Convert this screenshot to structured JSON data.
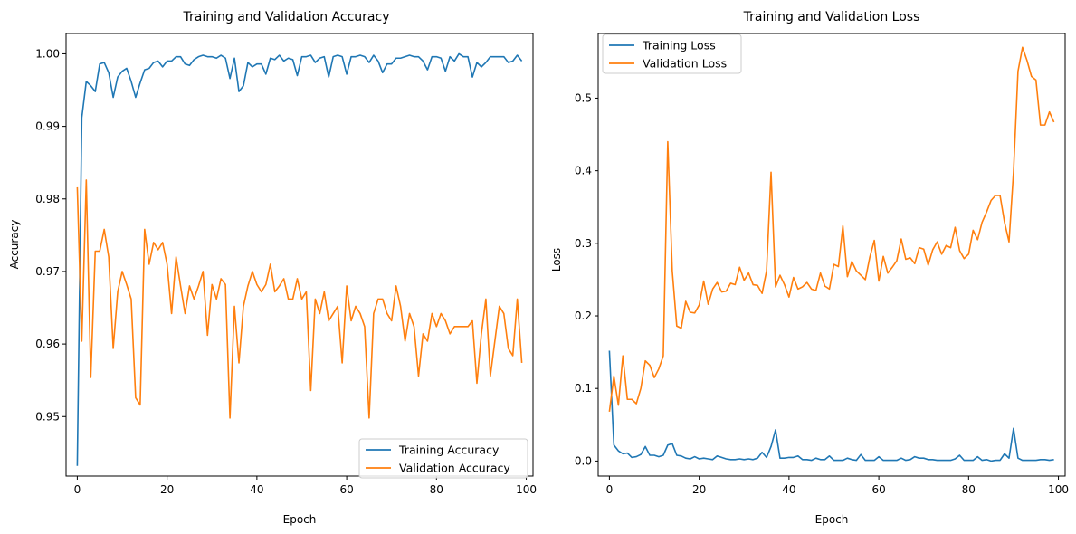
{
  "chart_data": [
    {
      "type": "line",
      "title": "Training and Validation Accuracy",
      "xlabel": "Epoch",
      "ylabel": "Accuracy",
      "xlim": [
        -2.5,
        101.5
      ],
      "ylim": [
        0.9418,
        1.0028
      ],
      "xticks": [
        0,
        20,
        40,
        60,
        80,
        100
      ],
      "xtick_labels": [
        "0",
        "20",
        "40",
        "60",
        "80",
        "100"
      ],
      "yticks": [
        0.95,
        0.96,
        0.97,
        0.98,
        0.99,
        1.0
      ],
      "ytick_labels": [
        "0.95",
        "0.96",
        "0.97",
        "0.98",
        "0.99",
        "1.00"
      ],
      "legend": "lower-right",
      "grid": false,
      "x_start": 0,
      "series": [
        {
          "name": "Training Accuracy",
          "color": "#1f77b4",
          "values": [
            0.9432,
            0.9912,
            0.9962,
            0.9956,
            0.9948,
            0.9986,
            0.9988,
            0.9974,
            0.994,
            0.9968,
            0.9976,
            0.998,
            0.9962,
            0.994,
            0.996,
            0.9978,
            0.998,
            0.9988,
            0.999,
            0.9982,
            0.999,
            0.999,
            0.9996,
            0.9996,
            0.9986,
            0.9984,
            0.9992,
            0.9996,
            0.9998,
            0.9996,
            0.9996,
            0.9994,
            0.9998,
            0.9994,
            0.9966,
            0.9994,
            0.9948,
            0.9956,
            0.9988,
            0.9982,
            0.9986,
            0.9986,
            0.9972,
            0.9994,
            0.9992,
            0.9998,
            0.999,
            0.9994,
            0.9992,
            0.997,
            0.9996,
            0.9996,
            0.9998,
            0.9988,
            0.9994,
            0.9996,
            0.9968,
            0.9996,
            0.9998,
            0.9996,
            0.9972,
            0.9996,
            0.9996,
            0.9998,
            0.9996,
            0.9988,
            0.9998,
            0.999,
            0.9974,
            0.9986,
            0.9986,
            0.9994,
            0.9994,
            0.9996,
            0.9998,
            0.9996,
            0.9996,
            0.999,
            0.9978,
            0.9996,
            0.9996,
            0.9994,
            0.9976,
            0.9996,
            0.999,
            1.0,
            0.9996,
            0.9996,
            0.9968,
            0.9988,
            0.9982,
            0.9988,
            0.9996,
            0.9996,
            0.9996,
            0.9996,
            0.9988,
            0.999,
            0.9998,
            0.999
          ]
        },
        {
          "name": "Validation Accuracy",
          "color": "#ff7f0e",
          "values": [
            0.9816,
            0.9604,
            0.9826,
            0.9554,
            0.9728,
            0.9728,
            0.9758,
            0.972,
            0.9594,
            0.9672,
            0.97,
            0.9682,
            0.9662,
            0.9526,
            0.9516,
            0.9758,
            0.971,
            0.974,
            0.973,
            0.974,
            0.971,
            0.9642,
            0.972,
            0.968,
            0.9642,
            0.968,
            0.9662,
            0.968,
            0.97,
            0.9612,
            0.9682,
            0.9662,
            0.969,
            0.9682,
            0.9498,
            0.9652,
            0.9574,
            0.9652,
            0.968,
            0.97,
            0.9682,
            0.9672,
            0.9682,
            0.971,
            0.9672,
            0.968,
            0.969,
            0.9662,
            0.9662,
            0.969,
            0.9662,
            0.9672,
            0.9536,
            0.9662,
            0.9642,
            0.9672,
            0.9632,
            0.9642,
            0.9652,
            0.9574,
            0.968,
            0.9632,
            0.9652,
            0.9642,
            0.9624,
            0.9498,
            0.9642,
            0.9662,
            0.9662,
            0.9642,
            0.9632,
            0.968,
            0.9652,
            0.9604,
            0.9642,
            0.9624,
            0.9556,
            0.9614,
            0.9604,
            0.9642,
            0.9624,
            0.9642,
            0.9632,
            0.9614,
            0.9624,
            0.9624,
            0.9624,
            0.9624,
            0.9632,
            0.9546,
            0.9614,
            0.9662,
            0.9556,
            0.9604,
            0.9652,
            0.9642,
            0.9594,
            0.9584,
            0.9662,
            0.9574
          ]
        }
      ]
    },
    {
      "type": "line",
      "title": "Training and Validation Loss",
      "xlabel": "Epoch",
      "ylabel": "Loss",
      "xlim": [
        -2.5,
        101.5
      ],
      "ylim": [
        -0.0207,
        0.5891
      ],
      "xticks": [
        0,
        20,
        40,
        60,
        80,
        100
      ],
      "xtick_labels": [
        "0",
        "20",
        "40",
        "60",
        "80",
        "100"
      ],
      "yticks": [
        0.0,
        0.1,
        0.2,
        0.3,
        0.4,
        0.5
      ],
      "ytick_labels": [
        "0.0",
        "0.1",
        "0.2",
        "0.3",
        "0.4",
        "0.5"
      ],
      "legend": "upper-left",
      "grid": false,
      "x_start": 0,
      "series": [
        {
          "name": "Training Loss",
          "color": "#1f77b4",
          "values": [
            0.152,
            0.022,
            0.014,
            0.01,
            0.011,
            0.005,
            0.006,
            0.009,
            0.02,
            0.008,
            0.008,
            0.006,
            0.008,
            0.022,
            0.024,
            0.008,
            0.007,
            0.004,
            0.003,
            0.006,
            0.003,
            0.004,
            0.003,
            0.002,
            0.007,
            0.005,
            0.003,
            0.002,
            0.002,
            0.003,
            0.002,
            0.003,
            0.002,
            0.004,
            0.012,
            0.005,
            0.02,
            0.043,
            0.004,
            0.004,
            0.005,
            0.005,
            0.007,
            0.002,
            0.002,
            0.001,
            0.004,
            0.002,
            0.002,
            0.007,
            0.001,
            0.001,
            0.001,
            0.004,
            0.002,
            0.001,
            0.009,
            0.001,
            0.001,
            0.001,
            0.006,
            0.001,
            0.001,
            0.001,
            0.001,
            0.004,
            0.001,
            0.002,
            0.006,
            0.004,
            0.004,
            0.002,
            0.002,
            0.001,
            0.001,
            0.001,
            0.001,
            0.003,
            0.008,
            0.001,
            0.001,
            0.001,
            0.006,
            0.001,
            0.002,
            0.0,
            0.001,
            0.001,
            0.01,
            0.004,
            0.045,
            0.004,
            0.001,
            0.001,
            0.001,
            0.001,
            0.002,
            0.002,
            0.001,
            0.002
          ]
        },
        {
          "name": "Validation Loss",
          "color": "#ff7f0e",
          "values": [
            0.068,
            0.117,
            0.077,
            0.145,
            0.085,
            0.085,
            0.079,
            0.1,
            0.138,
            0.132,
            0.115,
            0.127,
            0.145,
            0.44,
            0.262,
            0.186,
            0.183,
            0.22,
            0.205,
            0.204,
            0.215,
            0.248,
            0.216,
            0.237,
            0.246,
            0.233,
            0.234,
            0.245,
            0.243,
            0.267,
            0.249,
            0.259,
            0.243,
            0.242,
            0.231,
            0.262,
            0.398,
            0.24,
            0.256,
            0.243,
            0.226,
            0.253,
            0.237,
            0.24,
            0.246,
            0.237,
            0.235,
            0.259,
            0.241,
            0.237,
            0.271,
            0.268,
            0.324,
            0.254,
            0.275,
            0.262,
            0.256,
            0.25,
            0.281,
            0.304,
            0.248,
            0.282,
            0.259,
            0.267,
            0.276,
            0.306,
            0.278,
            0.28,
            0.272,
            0.294,
            0.292,
            0.27,
            0.291,
            0.302,
            0.285,
            0.297,
            0.294,
            0.322,
            0.29,
            0.279,
            0.285,
            0.318,
            0.305,
            0.329,
            0.343,
            0.359,
            0.366,
            0.366,
            0.329,
            0.302,
            0.398,
            0.537,
            0.57,
            0.552,
            0.53,
            0.525,
            0.463,
            0.463,
            0.481,
            0.467
          ]
        }
      ]
    }
  ]
}
